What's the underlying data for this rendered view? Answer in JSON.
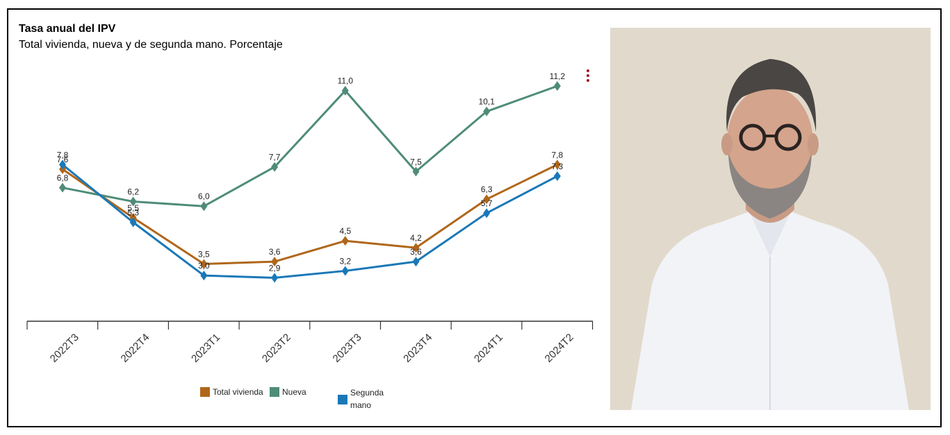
{
  "chart_data": {
    "type": "line",
    "title": "Tasa anual del IPV",
    "subtitle": "Total vivienda, nueva y de segunda mano. Porcentaje",
    "categories": [
      "2022T3",
      "2022T4",
      "2023T1",
      "2023T2",
      "2023T3",
      "2023T4",
      "2024T1",
      "2024T2"
    ],
    "series": [
      {
        "name": "Total vivienda",
        "color": "#b0661a",
        "values": [
          7.6,
          5.5,
          3.5,
          3.6,
          4.5,
          4.2,
          6.3,
          7.8
        ],
        "labels": [
          "7,6",
          "5,5",
          "3,5",
          "3,6",
          "4,5",
          "4,2",
          "6,3",
          "7,8"
        ]
      },
      {
        "name": "Nueva",
        "color": "#4e8c7a",
        "values": [
          6.8,
          6.2,
          6.0,
          7.7,
          11.0,
          7.5,
          10.1,
          11.2
        ],
        "labels": [
          "6,8",
          "6,2",
          "6,0",
          "7,7",
          "11,0",
          "7,5",
          "10,1",
          "11,2"
        ]
      },
      {
        "name": "Segunda mano",
        "color": "#1a78b8",
        "values": [
          7.8,
          5.3,
          3.0,
          2.9,
          3.2,
          3.6,
          5.7,
          7.3
        ],
        "labels": [
          "7,8",
          "5,3",
          "3,0",
          "2,9",
          "3,2",
          "3,6",
          "5,7",
          "7,3"
        ]
      }
    ],
    "legend": {
      "position": "bottom",
      "labels": [
        "Total vivienda",
        "Nueva",
        "Segunda mano"
      ]
    },
    "grid": false
  },
  "colors": {
    "menu_dots": "#9c1c2b",
    "axis": "#333333"
  },
  "menu_icon": "vertical-dots-icon",
  "photo": {
    "subject": "person-portrait"
  }
}
